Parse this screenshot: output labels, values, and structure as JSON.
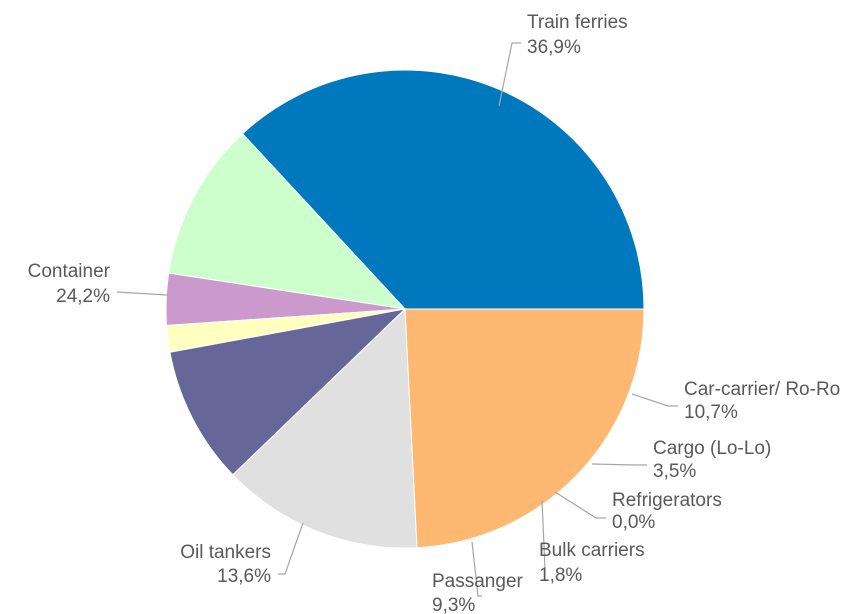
{
  "chart_data": {
    "type": "pie",
    "title": "",
    "slices": [
      {
        "label": "Train ferries",
        "value": 36.9,
        "display": "36,9%",
        "color": "#0078bd"
      },
      {
        "label": "Car-carrier/ Ro-Ro",
        "value": 10.7,
        "display": "10,7%",
        "color": "#ccffcc"
      },
      {
        "label": "Cargo (Lo-Lo)",
        "value": 3.5,
        "display": "3,5%",
        "color": "#cc99cc"
      },
      {
        "label": "Refrigerators",
        "value": 0.0,
        "display": "0,0%",
        "color": "#cccccc"
      },
      {
        "label": "Bulk carriers",
        "value": 1.8,
        "display": "1,8%",
        "color": "#ffffc0"
      },
      {
        "label": "Passanger",
        "value": 9.3,
        "display": "9,3%",
        "color": "#666699"
      },
      {
        "label": "Oil tankers",
        "value": 13.6,
        "display": "13,6%",
        "color": "#e0e0e0"
      },
      {
        "label": "Container",
        "value": 24.2,
        "display": "24,2%",
        "color": "#ffb871"
      }
    ],
    "legend": "none"
  }
}
